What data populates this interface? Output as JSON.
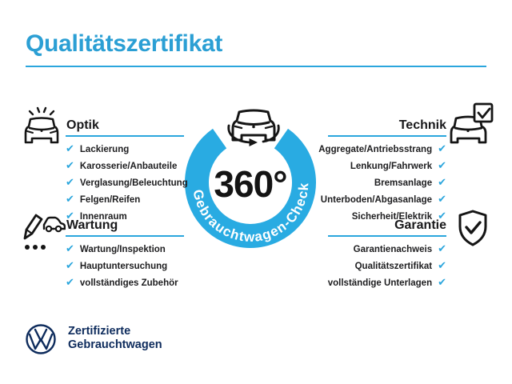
{
  "page": {
    "title": "Qualitätszertifikat"
  },
  "colors": {
    "title_blue": "#2b9fd4",
    "accent_blue": "#2ba6dd",
    "ring_blue": "#29abe2",
    "text_dark": "#1d1d1f",
    "vw_navy": "#0d2b5c",
    "background": "#ffffff"
  },
  "center_badge": {
    "degree": "360°",
    "ring_text": "Gebrauchtwagen-Check",
    "icon": "car-360-rotation-icon"
  },
  "check_glyph": "✔",
  "sections": [
    {
      "id": "optik",
      "title": "Optik",
      "icon": "shiny-car-front-icon",
      "side": "left",
      "items": [
        "Lackierung",
        "Karosserie/Anbauteile",
        "Verglasung/Beleuchtung",
        "Felgen/Reifen",
        "Innenraum"
      ]
    },
    {
      "id": "technik",
      "title": "Technik",
      "icon": "car-checkbox-icon",
      "side": "right",
      "items": [
        "Aggregate/Antriebsstrang",
        "Lenkung/Fahrwerk",
        "Bremsanlage",
        "Unterboden/Abgasanlage",
        "Sicherheit/Elektrik"
      ]
    },
    {
      "id": "wartung",
      "title": "Wartung",
      "icon": "pen-checklist-car-icon",
      "side": "left",
      "items": [
        "Wartung/Inspektion",
        "Hauptuntersuchung",
        "vollständiges Zubehör"
      ]
    },
    {
      "id": "garantie",
      "title": "Garantie",
      "icon": "shield-check-icon",
      "side": "right",
      "items": [
        "Garantienachweis",
        "Qualitätszertifikat",
        "vollständige Unterlagen"
      ]
    }
  ],
  "footer": {
    "brand_icon": "vw-logo",
    "line1": "Zertifizierte",
    "line2": "Gebrauchtwagen"
  }
}
